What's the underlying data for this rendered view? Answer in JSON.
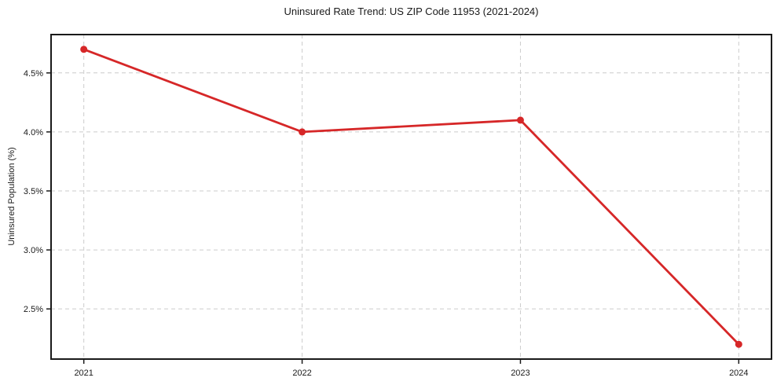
{
  "figure": {
    "title": "Uninsured Rate Trend: US ZIP Code 11953 (2021-2024)",
    "ylabel": "Uninsured Population (%)"
  },
  "chart_data": {
    "type": "line",
    "title": "Uninsured Rate Trend: US ZIP Code 11953 (2021-2024)",
    "xlabel": "",
    "ylabel": "Uninsured Population (%)",
    "x": [
      2021,
      2022,
      2023,
      2024
    ],
    "series": [
      {
        "name": "Uninsured Population (%)",
        "values": [
          4.7,
          4.0,
          4.1,
          2.2
        ]
      }
    ],
    "xticks": [
      2021,
      2022,
      2023,
      2024
    ],
    "xtick_labels": [
      "2021",
      "2022",
      "2023",
      "2024"
    ],
    "yticks": [
      2.5,
      3.0,
      3.5,
      4.0,
      4.5
    ],
    "ytick_labels": [
      "2.5%",
      "3.0%",
      "3.5%",
      "4.0%",
      "4.5%"
    ],
    "xlim": [
      2020.85,
      2024.15
    ],
    "ylim": [
      2.075,
      4.825
    ],
    "grid": true,
    "grid_style": "dashed",
    "legend": "none",
    "colors": {
      "line": "#d62728",
      "marker": "#d62728",
      "grid": "#cccccc",
      "spine": "#1a1a1a",
      "text": "#1a1a1a",
      "background": "#ffffff"
    }
  }
}
